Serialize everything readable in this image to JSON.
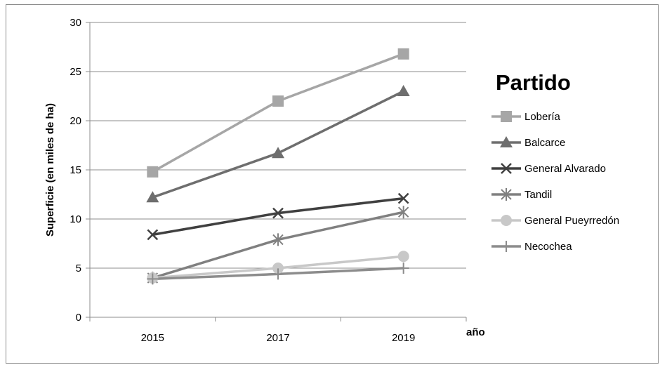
{
  "chart_data": {
    "type": "line",
    "x": [
      "2015",
      "2017",
      "2019"
    ],
    "ylabel": "Superficie (en miles de ha)",
    "xlabel": "año",
    "ylim": [
      0,
      30
    ],
    "yticks": [
      0,
      5,
      10,
      15,
      20,
      25,
      30
    ],
    "grid": true,
    "legend": {
      "title": "Partido",
      "position": "right"
    },
    "series": [
      {
        "name": "Lobería",
        "values": [
          14.8,
          22.0,
          26.8
        ],
        "color": "#a6a6a6",
        "marker": "square"
      },
      {
        "name": "Balcarce",
        "values": [
          12.2,
          16.7,
          23.0
        ],
        "color": "#6e6e6e",
        "marker": "triangle"
      },
      {
        "name": "General Alvarado",
        "values": [
          8.4,
          10.6,
          12.1
        ],
        "color": "#404040",
        "marker": "x"
      },
      {
        "name": "Tandil",
        "values": [
          4.0,
          7.9,
          10.7
        ],
        "color": "#808080",
        "marker": "star"
      },
      {
        "name": "General Pueyrredón",
        "values": [
          4.0,
          5.0,
          6.2
        ],
        "color": "#c8c8c8",
        "marker": "circle"
      },
      {
        "name": "Necochea",
        "values": [
          3.9,
          4.4,
          5.0
        ],
        "color": "#8c8c8c",
        "marker": "plus"
      }
    ]
  }
}
